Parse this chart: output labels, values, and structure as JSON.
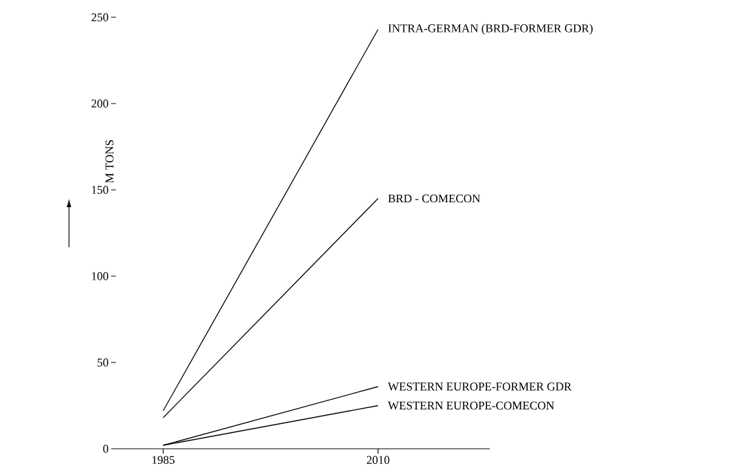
{
  "chart_data": {
    "type": "line",
    "ylabel": "M TONS",
    "x": [
      1985,
      2010
    ],
    "xlim": [
      1979.5,
      2023
    ],
    "ylim": [
      0,
      250
    ],
    "xticks": [
      1985,
      2010
    ],
    "yticks": [
      0,
      50,
      100,
      150,
      200,
      250
    ],
    "series": [
      {
        "name": "INTRA-GERMAN (BRD-FORMER GDR)",
        "color": "#000000",
        "values": [
          22,
          243
        ]
      },
      {
        "name": "BRD - COMECON",
        "color": "#000000",
        "values": [
          18,
          145
        ]
      },
      {
        "name": "WESTERN EUROPE-FORMER GDR",
        "color": "#000000",
        "values": [
          2,
          36
        ]
      },
      {
        "name": "WESTERN EUROPE-COMECON",
        "color": "#000000",
        "values": [
          2,
          25
        ]
      }
    ]
  }
}
